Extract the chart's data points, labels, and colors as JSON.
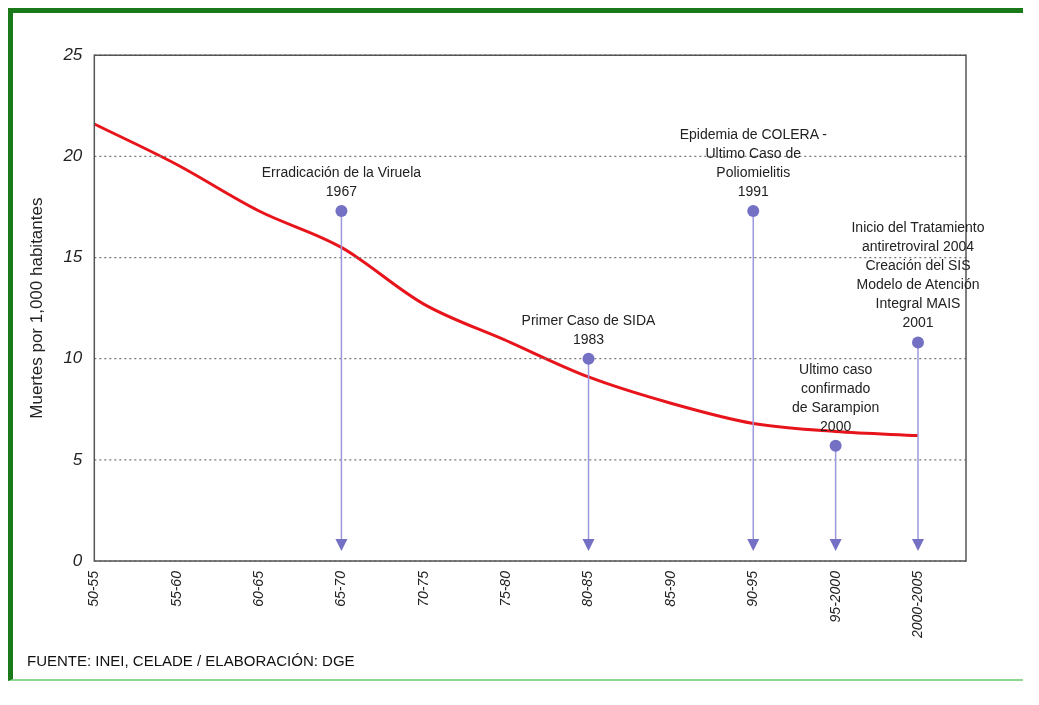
{
  "chart_data": {
    "type": "line",
    "ylabel": "Muertes por 1,000 habitantes",
    "categories": [
      "50-55",
      "55-60",
      "60-65",
      "65-70",
      "70-75",
      "75-80",
      "80-85",
      "85-90",
      "90-95",
      "95-2000",
      "2000-2005"
    ],
    "series": [
      {
        "color": "#e8141b",
        "values": [
          21.6,
          19.6,
          17.3,
          15.5,
          12.7,
          10.9,
          9.1,
          7.8,
          6.8,
          6.4,
          6.2
        ]
      }
    ],
    "ylim": [
      0,
      25
    ],
    "yticks": [
      0,
      5,
      10,
      15,
      20,
      25
    ],
    "grid": "y",
    "legend": false,
    "marker": "none",
    "line_style": "solid",
    "annotations": [
      {
        "text": "Erradicación de la Viruela\n1967",
        "x": "65-70",
        "y": 17.3
      },
      {
        "text": "Primer Caso de SIDA\n1983",
        "x": "80-85",
        "y": 10
      },
      {
        "text": "Epidemia de COLERA -\nUltimo Caso de\nPoliomielitis\n1991",
        "x": "90-95",
        "y": 17.3
      },
      {
        "text": "Ultimo caso\nconfirmado\nde Sarampion\n2000",
        "x": "95-2000",
        "y": 5.7
      },
      {
        "text": "Inicio del Tratamiento\nantiretroviral 2004\nCreación del SIS\nModelo de Atención\nIntegral MAIS\n2001",
        "x": "2000-2005",
        "y": 10.8
      },
      "FUENTE: INEI, CELADE / ELABORACIÓN: DGE"
    ]
  }
}
